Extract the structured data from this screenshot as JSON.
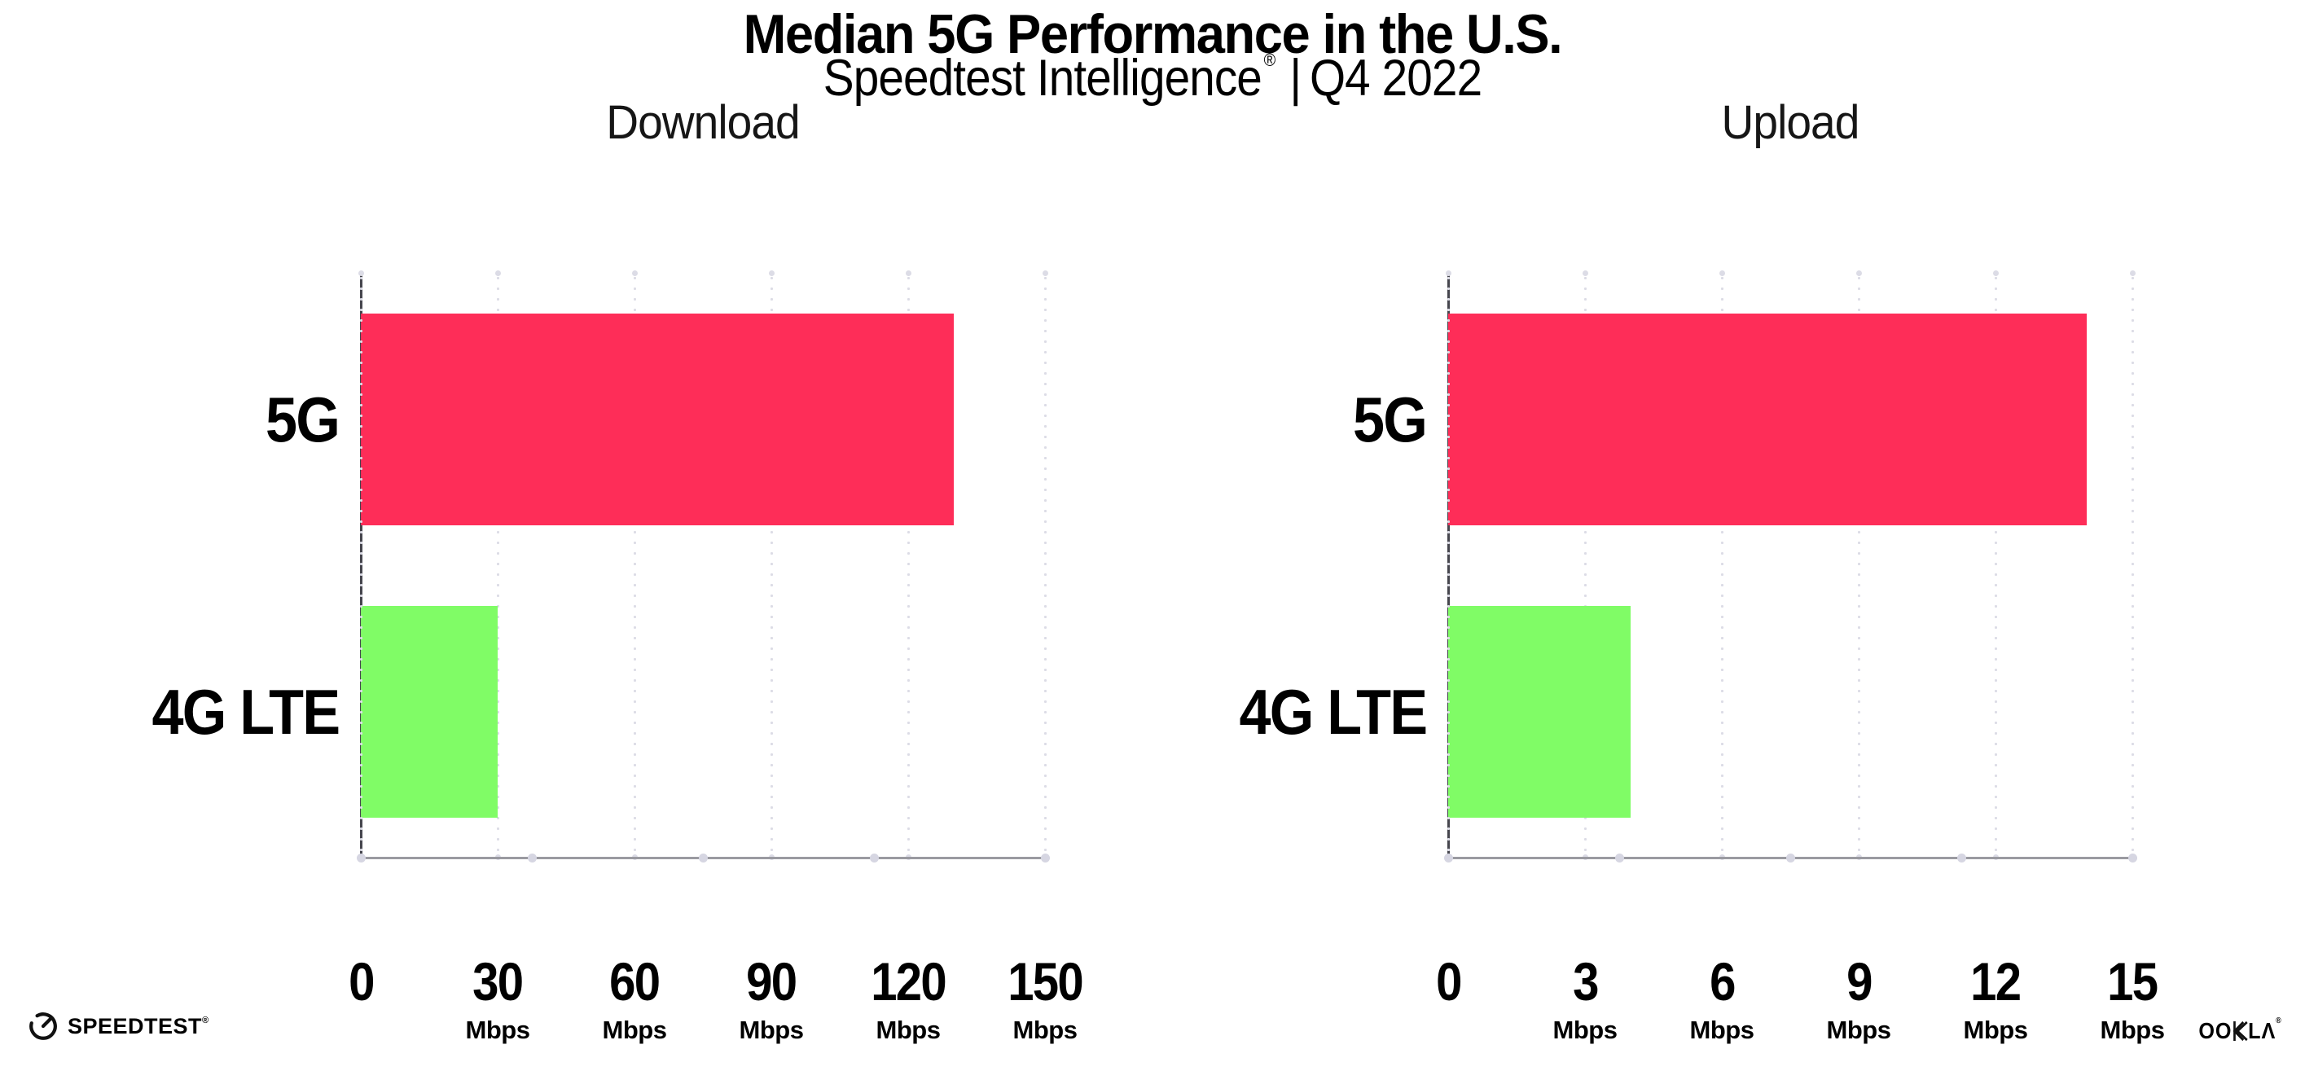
{
  "header": {
    "title": "Median 5G Performance in the U.S.",
    "subtitle_brand": "Speedtest Intelligence",
    "subtitle_registered": "®",
    "subtitle_divider": "|",
    "subtitle_period": "Q4 2022"
  },
  "colors": {
    "bar_5g": "#FE2D58",
    "bar_4g_lte": "#80FC66",
    "y_axis": "#46464E",
    "x_axis": "#9A9AA1",
    "gridline": "#DCDCE6",
    "axis_cap_dot": "#D6D6E2",
    "title_text": "#000000",
    "chart_title_text": "#161616",
    "background": "#FFFFFF"
  },
  "chart_data": [
    {
      "type": "bar",
      "orientation": "horizontal",
      "title": "Download",
      "unit": "Mbps",
      "categories": [
        "5G",
        "4G LTE"
      ],
      "values": [
        130,
        30
      ],
      "xlim": [
        0,
        150
      ],
      "xticks": [
        0,
        30,
        60,
        90,
        120,
        150
      ],
      "bar_colors": [
        "#FE2D58",
        "#80FC66"
      ],
      "grid": "dotted-vertical",
      "legend": "none"
    },
    {
      "type": "bar",
      "orientation": "horizontal",
      "title": "Upload",
      "unit": "Mbps",
      "categories": [
        "5G",
        "4G LTE"
      ],
      "values": [
        14,
        4
      ],
      "xlim": [
        0,
        15
      ],
      "xticks": [
        0,
        3,
        6,
        9,
        12,
        15
      ],
      "bar_colors": [
        "#FE2D58",
        "#80FC66"
      ],
      "grid": "dotted-vertical",
      "legend": "none"
    }
  ],
  "footer": {
    "speedtest_word": "SPEEDTEST",
    "speedtest_trademark": "®",
    "speedtest_icon": "speedtest-gauge-icon",
    "ookla_left": "OO",
    "ookla_right": "LΛ",
    "ookla_trademark": "®",
    "ookla_icon": "ookla-k-icon"
  }
}
